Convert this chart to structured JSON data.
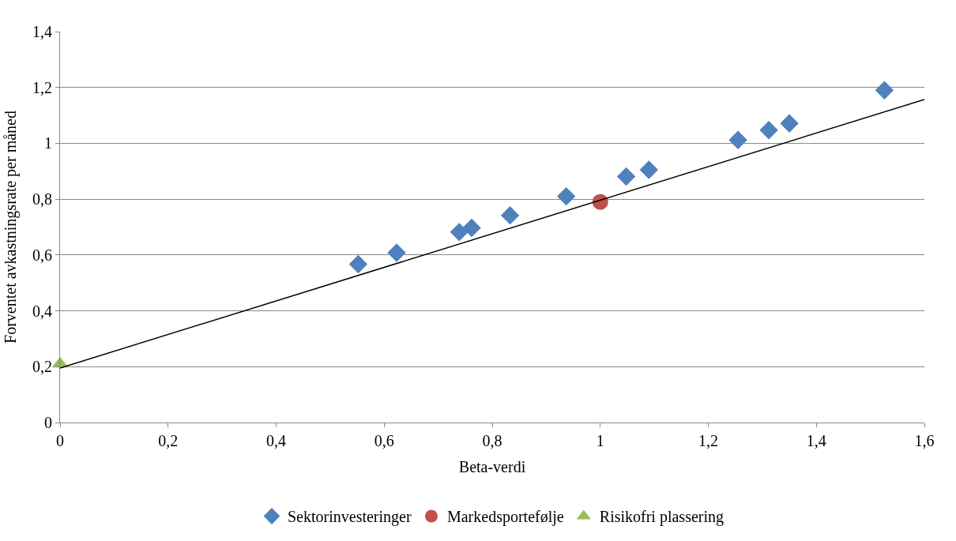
{
  "chart_data": {
    "type": "scatter",
    "xlabel": "Beta-verdi",
    "ylabel": "Forventet avkastningsrate per måned",
    "xlim": [
      0,
      1.6
    ],
    "xticks": [
      {
        "value": 0,
        "label": "0"
      },
      {
        "value": 0.2,
        "label": "0,2"
      },
      {
        "value": 0.4,
        "label": "0,4"
      },
      {
        "value": 0.6,
        "label": "0,6"
      },
      {
        "value": 0.8,
        "label": "0,8"
      },
      {
        "value": 1,
        "label": "1"
      },
      {
        "value": 1.2,
        "label": "1,2"
      },
      {
        "value": 1.4,
        "label": "1,4"
      },
      {
        "value": 1.6,
        "label": "1,6"
      }
    ],
    "ylim": [
      0,
      1.4
    ],
    "yticks": [
      {
        "value": 0,
        "label": "0"
      },
      {
        "value": 0.2,
        "label": "0,2"
      },
      {
        "value": 0.4,
        "label": "0,4"
      },
      {
        "value": 0.6,
        "label": "0,6"
      },
      {
        "value": 0.8,
        "label": "0,8"
      },
      {
        "value": 1,
        "label": "1"
      },
      {
        "value": 1.2,
        "label": "1,2"
      },
      {
        "value": 1.4,
        "label": "1,4"
      }
    ],
    "grid": "y",
    "legend": "bottom",
    "series": [
      {
        "name": "Sektorinvesteringer",
        "color": "#4f81bd",
        "marker": "diamond",
        "x": [
          0.552,
          0.623,
          0.739,
          0.762,
          0.833,
          0.937,
          1.048,
          1.09,
          1.255,
          1.312,
          1.35,
          1.526
        ],
        "values": [
          0.567,
          0.608,
          0.682,
          0.697,
          0.742,
          0.81,
          0.881,
          0.905,
          1.012,
          1.047,
          1.071,
          1.19
        ]
      },
      {
        "name": "Markedsportefølje",
        "color": "#c0504d",
        "marker": "circle",
        "x": [
          1
        ],
        "values": [
          0.79
        ]
      },
      {
        "name": "Risikofri plassering",
        "color": "#9bbb59",
        "marker": "triangle",
        "x": [
          0
        ],
        "values": [
          0.21
        ]
      },
      {
        "type": "line",
        "color": "#000000",
        "marker": "none",
        "line_style": "solid",
        "x": [
          0,
          1.6
        ],
        "values": [
          0.195,
          1.157
        ]
      }
    ]
  }
}
